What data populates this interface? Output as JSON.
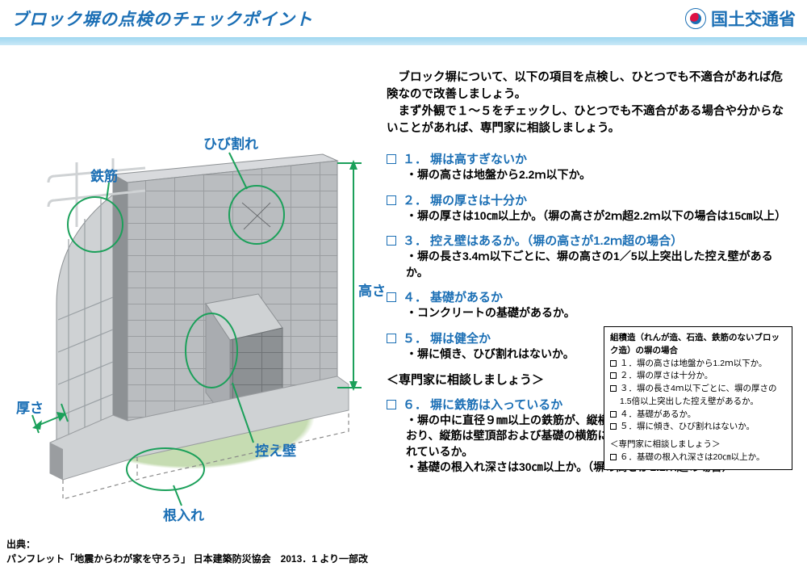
{
  "title": "ブロック塀の点検のチェックポイント",
  "ministry": "国土交通省",
  "intro": "　ブロック塀について、以下の項目を点検し、ひとつでも不適合があれば危険なので改善しましょう。\n　まず外観で１〜５をチェックし、ひとつでも不適合がある場合や分からないことがあれば、専門家に相談しましょう。",
  "labels": {
    "crack": "ひび割れ",
    "rebar": "鉄筋",
    "height": "高さ",
    "thickness": "厚さ",
    "buttress": "控え壁",
    "embedment": "根入れ"
  },
  "checks": [
    {
      "num": "１",
      "head": "塀は高すぎないか",
      "body": "・塀の高さは地盤から2.2ｍ以下か。"
    },
    {
      "num": "２",
      "head": "塀の厚さは十分か",
      "body": "・塀の厚さは10㎝以上か。（塀の高さが2ｍ超2.2ｍ以下の場合は15㎝以上）"
    },
    {
      "num": "３",
      "head": "控え壁はあるか。（塀の高さが1.2ｍ超の場合）",
      "body": "・塀の長さ3.4ｍ以下ごとに、塀の高さの1／5以上突出した控え壁があるか。"
    },
    {
      "num": "４",
      "head": "基礎があるか",
      "body": "・コンクリートの基礎があるか。"
    },
    {
      "num": "５",
      "head": "塀は健全か",
      "body": "・塀に傾き、ひび割れはないか。"
    }
  ],
  "expert_note": "＜専門家に相談しましょう＞",
  "check6": {
    "num": "６",
    "head": "塀に鉄筋は入っているか",
    "body": "・塀の中に直径９㎜以上の鉄筋が、縦横とも　80㎝間隔以下で配筋されており、縦筋は壁頂部および基礎の横筋に、横筋は縦筋にそれぞれかぎ掛けされているか。\n・基礎の根入れ深さは30㎝以上か。（塀の高さが1.2ｍ超の場合）"
  },
  "sidebox": {
    "heading": "組積造（れんが造、石造、鉄筋のないブロック造）の塀の場合",
    "items": [
      "１．塀の高さは地盤から1.2ｍ以下か。",
      "２．塀の厚さは十分か。",
      "３．塀の長さ4ｍ以下ごとに、塀の厚さの1.5倍以上突出した控え壁があるか。",
      "４．基礎があるか。",
      "５．塀に傾き、ひび割れはないか。"
    ],
    "expert": "＜専門家に相談しましょう＞",
    "item6": "６．基礎の根入れ深さは20㎝以上か。"
  },
  "source_label": "出典：",
  "source_text": "パンフレット「地震からわが家を守ろう」 日本建築防災協会　2013．1 より一部改",
  "colors": {
    "primary": "#1b6fb5",
    "accent_top": "#9fd7f0",
    "accent_bot": "#c9e8f7",
    "arrow": "#1ba05a",
    "ground": "#c6dcb2",
    "wall_light": "#d4d6d8",
    "wall_mid": "#b9bcbf",
    "wall_dark": "#8d9194"
  }
}
